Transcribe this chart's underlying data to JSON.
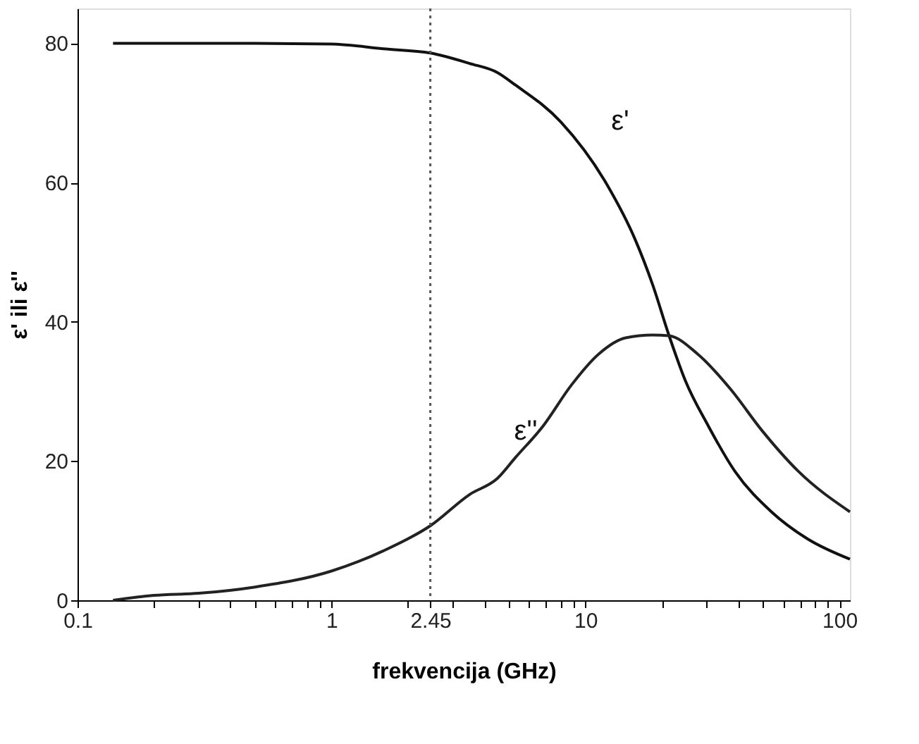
{
  "chart_data": {
    "type": "line",
    "xlabel": "frekvencija (GHz)",
    "ylabel": "ε' ili ε''",
    "log": "x",
    "grid": false,
    "line_style": "solid",
    "marker": "none",
    "xlim": [
      0.1,
      110
    ],
    "ylim": [
      0,
      85
    ],
    "xticks": [
      0.1,
      {
        "value": 0.2,
        "label": null
      },
      {
        "value": 0.3,
        "label": null
      },
      {
        "value": 0.4,
        "label": null
      },
      {
        "value": 0.5,
        "label": null
      },
      {
        "value": 0.6,
        "label": null
      },
      {
        "value": 0.7,
        "label": null
      },
      {
        "value": 0.8,
        "label": null
      },
      {
        "value": 0.9,
        "label": null
      },
      1,
      {
        "value": 2,
        "label": null
      },
      2.45,
      {
        "value": 3,
        "label": null
      },
      {
        "value": 4,
        "label": null
      },
      {
        "value": 5,
        "label": null
      },
      {
        "value": 6,
        "label": null
      },
      {
        "value": 7,
        "label": null
      },
      {
        "value": 8,
        "label": null
      },
      {
        "value": 9,
        "label": null
      },
      10,
      {
        "value": 20,
        "label": null
      },
      {
        "value": 30,
        "label": null
      },
      {
        "value": 40,
        "label": null
      },
      {
        "value": 50,
        "label": null
      },
      {
        "value": 60,
        "label": null
      },
      {
        "value": 70,
        "label": null
      },
      {
        "value": 80,
        "label": null
      },
      {
        "value": 90,
        "label": null
      },
      100
    ],
    "yticks": [
      0,
      20,
      40,
      60,
      80
    ],
    "series": [
      {
        "color": "#111111",
        "x": [
          0.138,
          0.5,
          1,
          1.6,
          2.45,
          3.5,
          4.5,
          5.3,
          8.0,
          12.2,
          15.7,
          18.4,
          21.3,
          24.7,
          30.5,
          38.8,
          54,
          75,
          110
        ],
        "values": [
          80,
          80,
          79.9,
          79.2,
          78.6,
          77.1,
          75.8,
          74.0,
          68.7,
          59.6,
          51.8,
          45.3,
          38.1,
          31.6,
          25.0,
          18.5,
          12.7,
          8.8,
          5.9
        ]
      },
      {
        "color": "#222222",
        "x": [
          0.138,
          0.2,
          0.3,
          0.5,
          1,
          1.6,
          2.45,
          3.5,
          4.5,
          5.3,
          6.8,
          8.8,
          11.3,
          14.4,
          18.4,
          21.3,
          27.6,
          37.3,
          49.5,
          69,
          110
        ],
        "values": [
          0,
          0.7,
          1.0,
          1.9,
          4.2,
          7.1,
          10.7,
          15.2,
          17.5,
          20.5,
          25.0,
          30.9,
          35.4,
          37.7,
          38.1,
          38.0,
          35.4,
          30.3,
          24.4,
          18.5,
          12.7
        ]
      }
    ],
    "ref_lines": [
      {
        "axis": "x",
        "value": 2.45,
        "color": "#555555",
        "line_style": "dotted"
      }
    ],
    "annotations": [
      "ε'",
      "ε''"
    ]
  }
}
